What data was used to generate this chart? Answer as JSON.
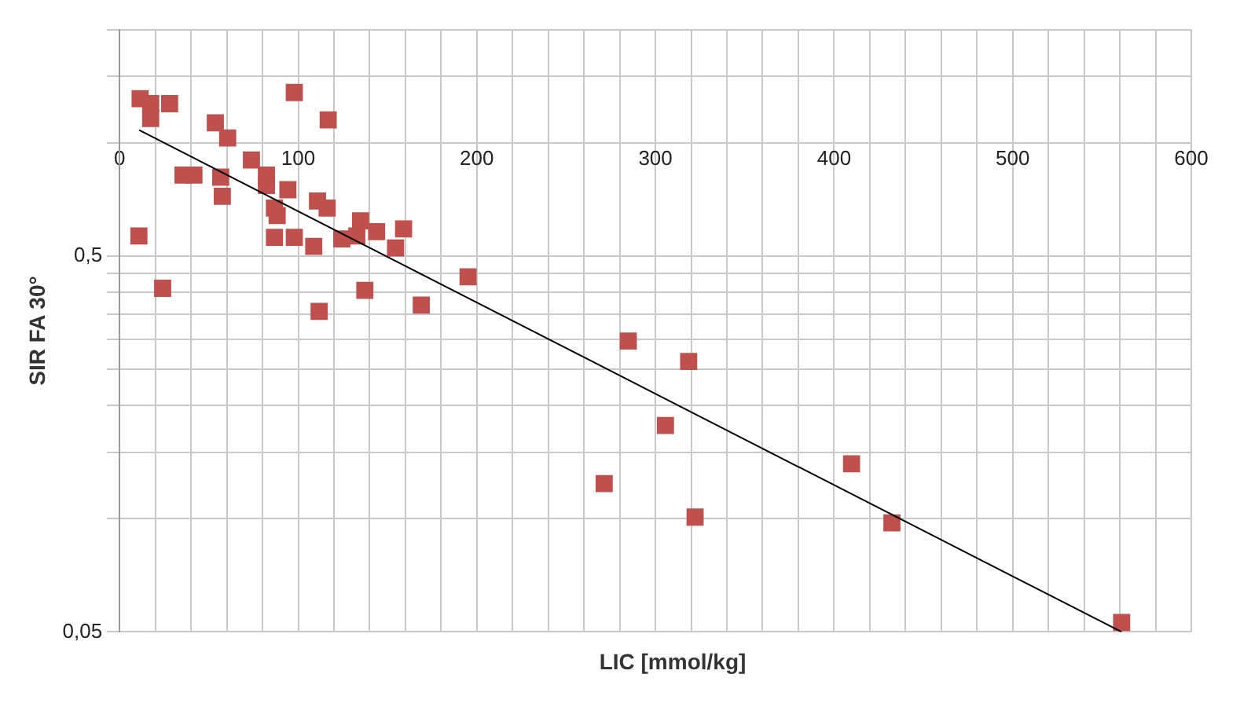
{
  "chart_data": {
    "type": "scatter",
    "xlabel": "LIC [mmol/kg]",
    "ylabel": "SIR FA 30°",
    "log": "y",
    "grid": true,
    "marker": "square",
    "xlim": [
      0,
      600
    ],
    "xticks": [
      0,
      {
        "value": 20,
        "label": null
      },
      {
        "value": 40,
        "label": null
      },
      {
        "value": 60,
        "label": null
      },
      {
        "value": 80,
        "label": null
      },
      100,
      {
        "value": 120,
        "label": null
      },
      {
        "value": 140,
        "label": null
      },
      {
        "value": 160,
        "label": null
      },
      {
        "value": 180,
        "label": null
      },
      200,
      {
        "value": 220,
        "label": null
      },
      {
        "value": 240,
        "label": null
      },
      {
        "value": 260,
        "label": null
      },
      {
        "value": 280,
        "label": null
      },
      300,
      {
        "value": 320,
        "label": null
      },
      {
        "value": 340,
        "label": null
      },
      {
        "value": 360,
        "label": null
      },
      {
        "value": 380,
        "label": null
      },
      400,
      {
        "value": 420,
        "label": null
      },
      {
        "value": 440,
        "label": null
      },
      {
        "value": 460,
        "label": null
      },
      {
        "value": 480,
        "label": null
      },
      500,
      {
        "value": 520,
        "label": null
      },
      {
        "value": 540,
        "label": null
      },
      {
        "value": 560,
        "label": null
      },
      {
        "value": 580,
        "label": null
      },
      600
    ],
    "ylim": [
      0.05,
      2
    ],
    "yticks": [
      {
        "value": 0.05,
        "label": "0,05"
      },
      {
        "value": 0.1,
        "label": null
      },
      {
        "value": 0.15,
        "label": null
      },
      {
        "value": 0.2,
        "label": null
      },
      {
        "value": 0.25,
        "label": null
      },
      {
        "value": 0.3,
        "label": null
      },
      {
        "value": 0.35,
        "label": null
      },
      {
        "value": 0.4,
        "label": null
      },
      {
        "value": 0.45,
        "label": null
      },
      {
        "value": 0.5,
        "label": "0,5"
      },
      {
        "value": 1,
        "label": null
      },
      {
        "value": 1.5,
        "label": null
      },
      {
        "value": 2,
        "label": null
      }
    ],
    "series": [
      {
        "color": "#c0504d",
        "x": [
          11.5,
          17.4,
          17.4,
          28,
          97.8,
          53.6,
          116.8,
          60.5,
          35.5,
          41.6,
          73.8,
          56.6,
          82.2,
          57.5,
          82.2,
          94.2,
          86.7,
          88.2,
          110.8,
          116.2,
          10.8,
          86.7,
          97.8,
          108.7,
          124.4,
          134.9,
          132.8,
          143.9,
          159,
          154.5,
          195.1,
          24.1,
          137.3,
          168.9,
          111.7,
          284.8,
          318.6,
          305.6,
          271.3,
          322.2,
          409.8,
          432.4,
          561
        ],
        "values": [
          1.31,
          1.27,
          1.16,
          1.27,
          1.36,
          1.13,
          1.15,
          1.03,
          0.82,
          0.82,
          0.9,
          0.81,
          0.82,
          0.72,
          0.77,
          0.75,
          0.67,
          0.64,
          0.7,
          0.67,
          0.565,
          0.56,
          0.56,
          0.53,
          0.555,
          0.62,
          0.565,
          0.58,
          0.59,
          0.525,
          0.44,
          0.41,
          0.405,
          0.37,
          0.356,
          0.297,
          0.262,
          0.177,
          0.124,
          0.101,
          0.14,
          0.0975,
          0.053
        ]
      },
      {
        "type": "line",
        "color": "#000000",
        "marker": "none",
        "line_style": "solid",
        "x": [
          11,
          561
        ],
        "values": [
          1.08,
          0.05
        ]
      }
    ]
  }
}
